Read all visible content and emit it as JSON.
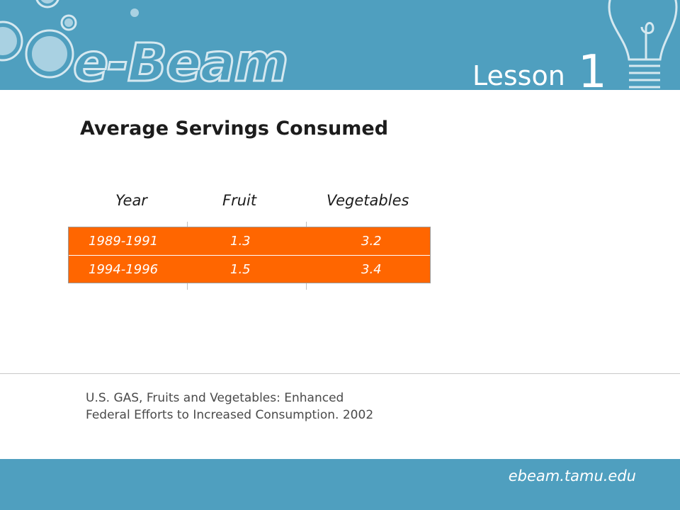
{
  "header": {
    "logo_text": "e-Beam",
    "lesson_label": "Lesson",
    "lesson_number": "1"
  },
  "title": "Average Servings Consumed",
  "table": {
    "columns": [
      "Year",
      "Fruit",
      "Vegetables"
    ],
    "rows": [
      [
        "1989-1991",
        "1.3",
        "3.2"
      ],
      [
        "1994-1996",
        "1.5",
        "3.4"
      ]
    ],
    "fill_color": "#ff6600"
  },
  "source": {
    "line1": "U.S. GAS, Fruits and Vegetables: Enhanced",
    "line2": "Federal Efforts to Increased Consumption. 2002"
  },
  "footer": {
    "url": "ebeam.tamu.edu"
  },
  "colors": {
    "brand_blue": "#4f9fbf",
    "table_orange": "#ff6600"
  },
  "icons": [
    "decorative-circles-icon",
    "light-bulb-icon"
  ]
}
